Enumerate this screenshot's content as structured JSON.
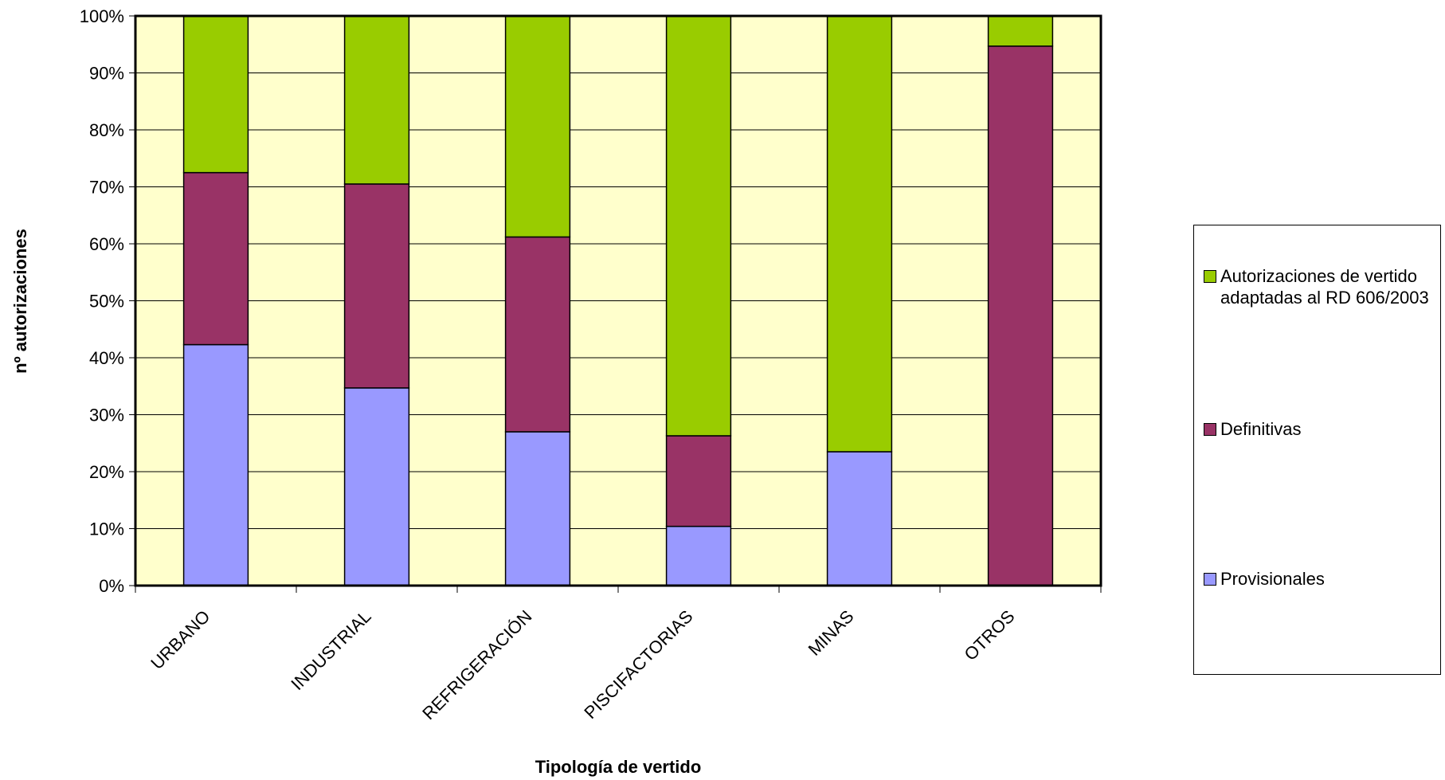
{
  "chart_data": {
    "type": "bar",
    "stacked": true,
    "percent_stacked": true,
    "title": "",
    "xlabel": "Tipología de vertido",
    "ylabel": "nº autorizaciones",
    "ylim": [
      0,
      100
    ],
    "y_ticks": [
      "0%",
      "10%",
      "20%",
      "30%",
      "40%",
      "50%",
      "60%",
      "70%",
      "80%",
      "90%",
      "100%"
    ],
    "categories": [
      "URBANO",
      "INDUSTRIAL",
      "REFRIGERACIÓN",
      "PISCIFACTORIAS",
      "MINAS",
      "OTROS"
    ],
    "series": [
      {
        "name": "Provisionales",
        "color": "#9999ff",
        "values": [
          42.3,
          34.7,
          27.0,
          10.4,
          23.5,
          0.0
        ]
      },
      {
        "name": "Definitivas",
        "color": "#993366",
        "values": [
          30.2,
          35.8,
          34.2,
          15.9,
          0.0,
          94.7
        ]
      },
      {
        "name": "Autorizaciones de vertido adaptadas al RD 606/2003",
        "color": "#99cc00",
        "values": [
          27.5,
          29.5,
          38.8,
          73.7,
          76.5,
          5.3
        ]
      }
    ],
    "plot_background": "#ffffcc",
    "grid": true,
    "legend_position": "right"
  },
  "legend": {
    "items": [
      {
        "label": "Autorizaciones de vertido adaptadas al RD 606/2003",
        "color": "#99cc00"
      },
      {
        "label": "Definitivas",
        "color": "#993366"
      },
      {
        "label": "Provisionales",
        "color": "#9999ff"
      }
    ]
  }
}
